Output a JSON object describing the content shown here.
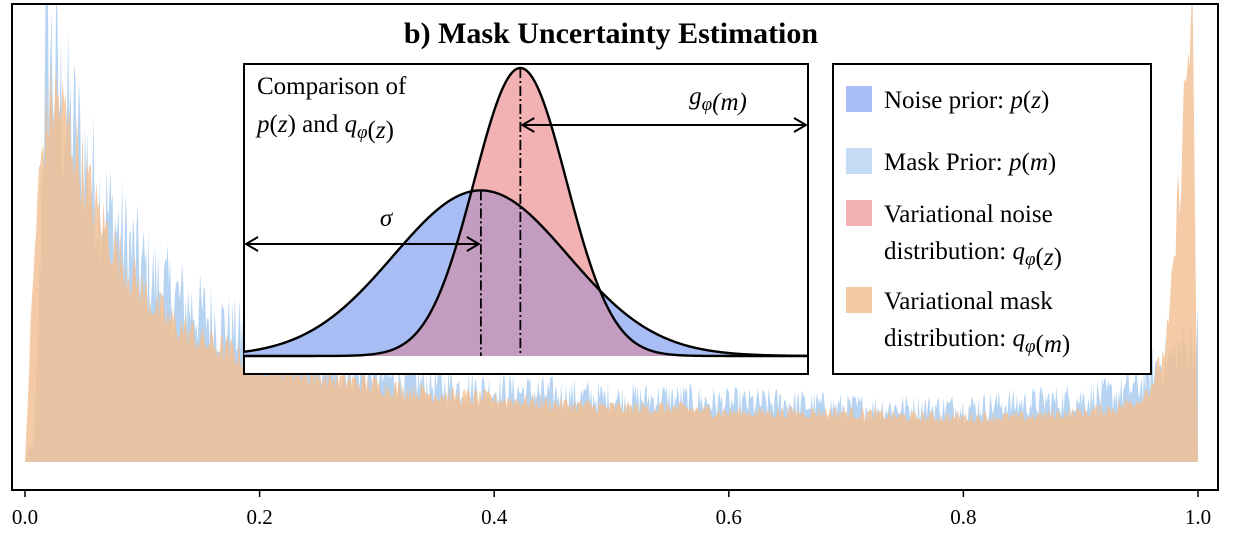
{
  "chart_data": {
    "type": "area",
    "title": "b) Mask Uncertainty Estimation",
    "xlabel": "",
    "ylabel": "",
    "xlim": [
      0.0,
      1.0
    ],
    "xticks": [
      "0.0",
      "0.2",
      "0.4",
      "0.6",
      "0.8",
      "1.0"
    ],
    "grid": false,
    "legend_position": "top-right",
    "series": [
      {
        "name": "Mask Prior: p(m)",
        "color": "#a9cdf0",
        "x": [
          0.0,
          0.008,
          0.012,
          0.016,
          0.02,
          0.025,
          0.03,
          0.04,
          0.05,
          0.06,
          0.08,
          0.1,
          0.12,
          0.15,
          0.18,
          0.2,
          0.25,
          0.3,
          0.35,
          0.4,
          0.45,
          0.5,
          0.55,
          0.6,
          0.65,
          0.7,
          0.75,
          0.8,
          0.85,
          0.9,
          0.93,
          0.95,
          0.96,
          0.97,
          0.98,
          0.99,
          1.0
        ],
        "y": [
          0.0,
          0.05,
          0.35,
          0.82,
          0.92,
          0.85,
          0.8,
          0.74,
          0.68,
          0.6,
          0.51,
          0.43,
          0.38,
          0.33,
          0.29,
          0.26,
          0.22,
          0.19,
          0.17,
          0.16,
          0.15,
          0.14,
          0.14,
          0.13,
          0.13,
          0.12,
          0.12,
          0.12,
          0.13,
          0.14,
          0.15,
          0.17,
          0.2,
          0.22,
          0.24,
          0.26,
          0.28
        ]
      },
      {
        "name": "Variational mask distribution: q_φ(m)",
        "color": "#f1bf93",
        "x": [
          0.0,
          0.005,
          0.01,
          0.015,
          0.02,
          0.025,
          0.03,
          0.04,
          0.05,
          0.06,
          0.08,
          0.1,
          0.12,
          0.15,
          0.2,
          0.25,
          0.3,
          0.35,
          0.4,
          0.45,
          0.5,
          0.55,
          0.6,
          0.65,
          0.7,
          0.75,
          0.8,
          0.85,
          0.9,
          0.93,
          0.95,
          0.96,
          0.97,
          0.975,
          0.98,
          0.985,
          0.99,
          0.995,
          1.0
        ],
        "y": [
          0.0,
          0.3,
          0.55,
          0.7,
          0.78,
          0.81,
          0.79,
          0.72,
          0.64,
          0.56,
          0.46,
          0.38,
          0.32,
          0.27,
          0.22,
          0.19,
          0.17,
          0.15,
          0.14,
          0.13,
          0.12,
          0.12,
          0.11,
          0.11,
          0.11,
          0.1,
          0.1,
          0.1,
          0.11,
          0.12,
          0.14,
          0.17,
          0.23,
          0.3,
          0.45,
          0.65,
          0.85,
          1.0,
          0.0
        ]
      }
    ],
    "inset": {
      "title_line1": "Comparison of",
      "title_line2": "p(z) and q_φ(z)",
      "label_sigma": "σ",
      "label_g": "g_φ(m)",
      "noise_prior": {
        "name": "Noise prior: p(z)",
        "color": "#a8bdf3",
        "mean": 0.42,
        "std": 0.155,
        "peak": 0.575
      },
      "variational_noise": {
        "name": "Variational noise distribution: q_φ(z)",
        "color": "#f2b1b3",
        "mean": 0.49,
        "std": 0.082,
        "peak": 1.0
      },
      "overlap_color": "#c49cbf"
    },
    "legend": [
      {
        "name": "Noise prior: p(z)",
        "color": "#a8bdf3"
      },
      {
        "name": "Mask Prior: p(m)",
        "color": "#c6dcf4"
      },
      {
        "name": "Variational noise distribution: q_φ(z)",
        "color": "#f2b1b3"
      },
      {
        "name": "Variational mask distribution: q_φ(m)",
        "color": "#f3c9a2"
      }
    ]
  }
}
